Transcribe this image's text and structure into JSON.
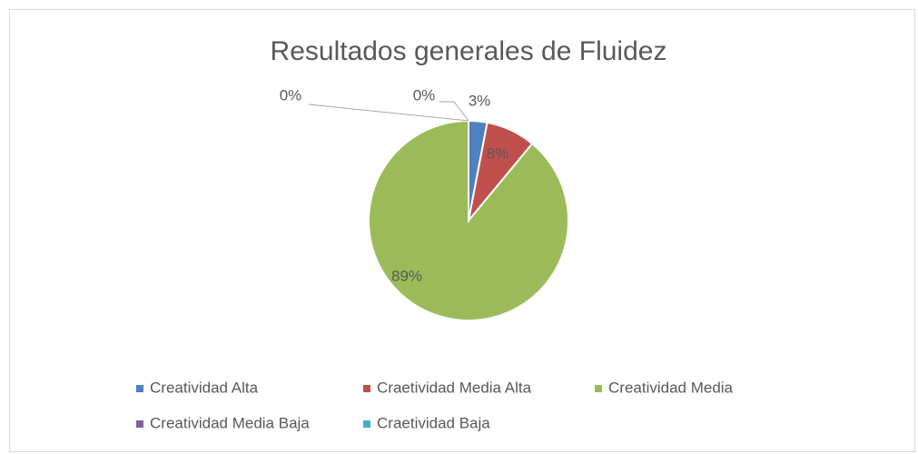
{
  "chart_data": {
    "type": "pie",
    "title": "Resultados generales de Fluidez",
    "categories": [
      "Creatividad Alta",
      "Craetividad Media Alta",
      "Creatividad Media",
      "Creatividad Media Baja",
      "Craetividad Baja"
    ],
    "values": [
      3,
      8,
      89,
      0,
      0
    ],
    "value_labels": [
      "3%",
      "8%",
      "89%",
      "0%",
      "0%"
    ],
    "colors": [
      "#4f81bd",
      "#c0504d",
      "#9bbb59",
      "#8064a2",
      "#4bacc6"
    ],
    "legend": "bottom"
  }
}
